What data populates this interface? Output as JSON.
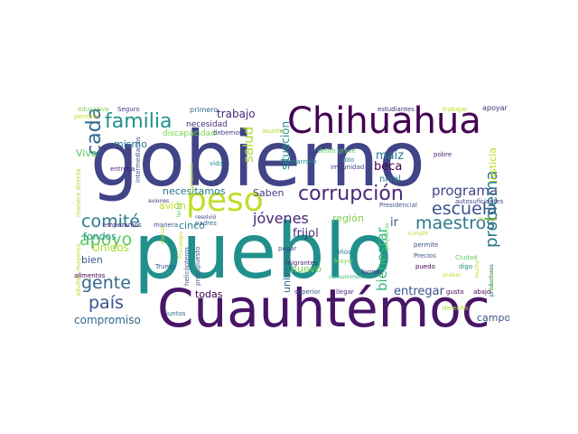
{
  "word_cloud": {
    "words": [
      {
        "text": "gobierno",
        "color": "#414487"
      },
      {
        "text": "pueblo",
        "color": "#21908c"
      },
      {
        "text": "Cuauhtémoc",
        "color": "#481567"
      },
      {
        "text": "Chihuahua",
        "color": "#440154"
      },
      {
        "text": "peso",
        "color": "#bddf26"
      },
      {
        "text": "corrupción",
        "color": "#482878"
      },
      {
        "text": "familia",
        "color": "#21918c"
      },
      {
        "text": "comité",
        "color": "#2a788e"
      },
      {
        "text": "escuela",
        "color": "#3b528b"
      },
      {
        "text": "programa",
        "color": "#414487"
      },
      {
        "text": "maestros",
        "color": "#2a788e"
      },
      {
        "text": "jóvenes",
        "color": "#482878"
      },
      {
        "text": "gente",
        "color": "#31688e"
      },
      {
        "text": "país",
        "color": "#3b528b"
      },
      {
        "text": "apoyo",
        "color": "#5ec962"
      },
      {
        "text": "cada",
        "color": "#31688e"
      },
      {
        "text": "problema",
        "color": "#2a788e"
      },
      {
        "text": "bienestar",
        "color": "#35b779"
      },
      {
        "text": "compromiso",
        "color": "#31688e"
      },
      {
        "text": "salud",
        "color": "#addc30"
      },
      {
        "text": "trabajo",
        "color": "#482878"
      },
      {
        "text": "situación",
        "color": "#21918c"
      },
      {
        "text": "maíz",
        "color": "#2a788e"
      },
      {
        "text": "beca",
        "color": "#440154"
      },
      {
        "text": "frijol",
        "color": "#472d7b"
      },
      {
        "text": "región",
        "color": "#7ad151"
      },
      {
        "text": "ir",
        "color": "#3b528b"
      },
      {
        "text": "entregar",
        "color": "#3b528b"
      },
      {
        "text": "campo",
        "color": "#3b528b"
      },
      {
        "text": "necesitamos",
        "color": "#2a788e"
      },
      {
        "text": "Saben",
        "color": "#433e85"
      },
      {
        "text": "cinco",
        "color": "#2a788e"
      },
      {
        "text": "avión",
        "color": "#bddf26"
      },
      {
        "text": "fondos",
        "color": "#21918c"
      },
      {
        "text": "Unidos",
        "color": "#addc30"
      },
      {
        "text": "universal",
        "color": "#31688e"
      },
      {
        "text": "nuevo",
        "color": "#7ad151"
      },
      {
        "text": "todas",
        "color": "#440154"
      },
      {
        "text": "mismo",
        "color": "#2a788e"
      },
      {
        "text": "Viva",
        "color": "#5ec962"
      },
      {
        "text": "bien",
        "color": "#3b528b"
      },
      {
        "text": "justicia",
        "color": "#bddf26"
      },
      {
        "text": "nivel",
        "color": "#2a788e"
      },
      {
        "text": "necesidad",
        "color": "#472d7b"
      },
      {
        "text": "discapacidad",
        "color": "#7ad151"
      },
      {
        "text": "primero",
        "color": "#31688e"
      },
      {
        "text": "debemos",
        "color": "#433e85"
      },
      {
        "text": "educativa",
        "color": "#7ad151"
      },
      {
        "text": "pensión",
        "color": "#bddf26"
      },
      {
        "text": "Seguro",
        "color": "#433e85"
      },
      {
        "text": "estudiantes",
        "color": "#472d7b"
      },
      {
        "text": "trabajar",
        "color": "#bddf26"
      },
      {
        "text": "apoyar",
        "color": "#472d7b"
      },
      {
        "text": "asunto",
        "color": "#addc30"
      },
      {
        "text": "entrega",
        "color": "#482878"
      },
      {
        "text": "intermediarios",
        "color": "#3b528b"
      },
      {
        "text": "organización",
        "color": "#addc30"
      },
      {
        "text": "vida",
        "color": "#21918c"
      },
      {
        "text": "delito grave",
        "color": "#5ec962"
      },
      {
        "text": "pobre",
        "color": "#482878"
      },
      {
        "text": "impunidad",
        "color": "#433e85"
      },
      {
        "text": "autosuficientes",
        "color": "#414487"
      },
      {
        "text": "Presidencial",
        "color": "#3b528b"
      },
      {
        "text": "desarrollo",
        "color": "#21918c"
      },
      {
        "text": "sólo",
        "color": "#2a788e"
      },
      {
        "text": "manera directa",
        "color": "#addc30"
      },
      {
        "text": "adultos mayores",
        "color": "#b4de2c"
      },
      {
        "text": "alimentos",
        "color": "#440154"
      },
      {
        "text": "aviones",
        "color": "#482878"
      },
      {
        "text": "manera",
        "color": "#3b528b"
      },
      {
        "text": "empezamos",
        "color": "#482878"
      },
      {
        "text": "resolvió",
        "color": "#433e85"
      },
      {
        "text": "leche",
        "color": "#5ec962"
      },
      {
        "text": "padres",
        "color": "#31688e"
      },
      {
        "text": "Trump",
        "color": "#3b528b"
      },
      {
        "text": "menos",
        "color": "#addc30"
      },
      {
        "text": "Procampo",
        "color": "#bddf26"
      },
      {
        "text": "helicópteros",
        "color": "#3b528b"
      },
      {
        "text": "presupuesto",
        "color": "#3b528b"
      },
      {
        "text": "pagar",
        "color": "#3b528b"
      },
      {
        "text": "migrantes",
        "color": "#482878"
      },
      {
        "text": "Mayor",
        "color": "#7ad151"
      },
      {
        "text": "niños",
        "color": "#2a788e"
      },
      {
        "text": "pequeños",
        "color": "#5ec962"
      },
      {
        "text": "formar",
        "color": "#482878"
      },
      {
        "text": "consumimos",
        "color": "#35b779"
      },
      {
        "text": "permite",
        "color": "#3b528b"
      },
      {
        "text": "Precios",
        "color": "#3b528b"
      },
      {
        "text": "puedo",
        "color": "#440154"
      },
      {
        "text": "cumplir",
        "color": "#addc30"
      },
      {
        "text": "meses",
        "color": "#bddf26"
      },
      {
        "text": "Ciudad",
        "color": "#5ec962"
      },
      {
        "text": "digo",
        "color": "#21918c"
      },
      {
        "text": "mucho",
        "color": "#bddf26"
      },
      {
        "text": "acabar",
        "color": "#bddf26"
      },
      {
        "text": "productores",
        "color": "#31688e"
      },
      {
        "text": "juntos",
        "color": "#31688e"
      },
      {
        "text": "superior",
        "color": "#3b528b"
      },
      {
        "text": "llegar",
        "color": "#472d7b"
      },
      {
        "text": "gusto",
        "color": "#440154"
      },
      {
        "text": "abajo",
        "color": "#440154"
      },
      {
        "text": "derecho",
        "color": "#addc30"
      },
      {
        "text": "Estados",
        "color": "#7ad151"
      }
    ]
  }
}
